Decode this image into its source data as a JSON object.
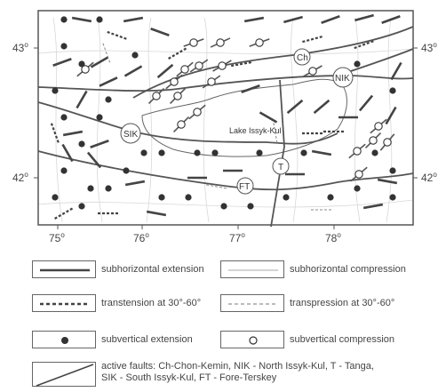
{
  "map": {
    "latitudes": [
      {
        "deg": "43",
        "value": 43
      },
      {
        "deg": "42",
        "value": 42
      }
    ],
    "longitudes": [
      {
        "deg": "75",
        "value": 75
      },
      {
        "deg": "76",
        "value": 76
      },
      {
        "deg": "77",
        "value": 77
      },
      {
        "deg": "78",
        "value": 78
      }
    ],
    "degree_symbol": "o",
    "lake_label": "Lake Issyk-Kul",
    "fault_codes": [
      "Ch",
      "NIK",
      "SIK",
      "T",
      "FT"
    ]
  },
  "legend": {
    "subhorizontal_extension": "subhorizontal extension",
    "subhorizontal_compression": "subhorizontal compression",
    "transtension": "transtension at 30°-60°",
    "transpression": "transpression at 30°-60°",
    "subvertical_extension": "subvertical extension",
    "subvertical_compression": "subvertical compression",
    "active_faults_line1": "active faults: Ch-Chon-Kemin,   NIK - North Issyk-Kul,   T - Tanga,",
    "active_faults_line2": "SIK - South Issyk-Kul,   FT - Fore-Terskey"
  }
}
